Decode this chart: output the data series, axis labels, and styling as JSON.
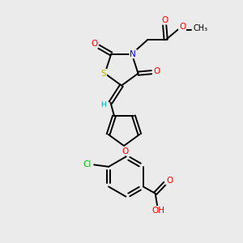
{
  "background_color": "#ebebeb",
  "bond_color": "#000000",
  "atom_colors": {
    "S": "#b8b800",
    "N": "#0000ff",
    "O": "#ff0000",
    "Cl": "#00bb00",
    "C": "#000000",
    "H": "#00aaaa"
  },
  "figsize": [
    3.0,
    3.0
  ],
  "dpi": 100,
  "xlim": [
    0,
    10
  ],
  "ylim": [
    0,
    10
  ]
}
